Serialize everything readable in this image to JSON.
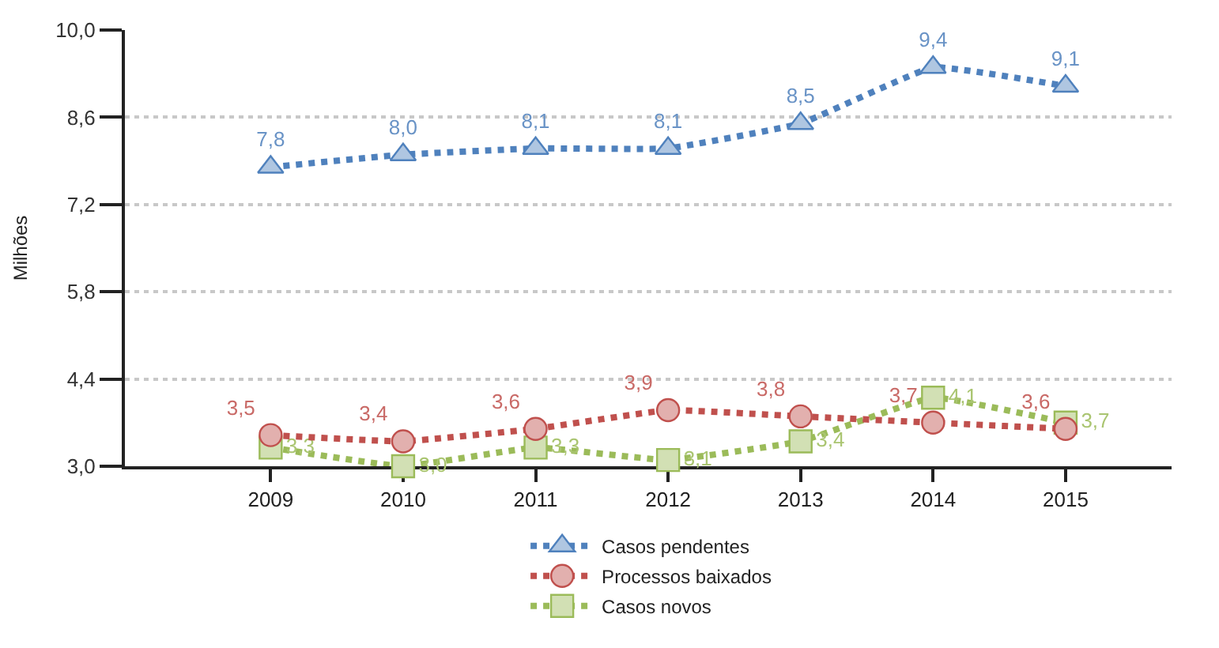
{
  "chart_data": {
    "type": "line",
    "ylabel": "Milhões",
    "categories": [
      "2009",
      "2010",
      "2011",
      "2012",
      "2013",
      "2014",
      "2015"
    ],
    "series": [
      {
        "name": "Casos pendentes",
        "color": "#4f81bd",
        "marker": "triangle",
        "values": [
          7.8,
          8.0,
          8.1,
          8.1,
          8.5,
          9.4,
          9.1
        ],
        "value_labels": [
          "7,8",
          "8,0",
          "8,1",
          "8,1",
          "8,5",
          "9,4",
          "9,1"
        ]
      },
      {
        "name": "Processos baixados",
        "color": "#c0504d",
        "marker": "circle",
        "values": [
          3.5,
          3.4,
          3.6,
          3.9,
          3.8,
          3.7,
          3.6
        ],
        "value_labels": [
          "3,5",
          "3,4",
          "3,6",
          "3,9",
          "3,8",
          "3,7",
          "3,6"
        ]
      },
      {
        "name": "Casos novos",
        "color": "#9bbb59",
        "marker": "square",
        "values": [
          3.3,
          3.0,
          3.3,
          3.1,
          3.4,
          4.1,
          3.7
        ],
        "value_labels": [
          "3,3",
          "3,0",
          "3,3",
          "3,1",
          "3,4",
          "4,1",
          "3,7"
        ]
      }
    ],
    "ylim": [
      3.0,
      10.0
    ],
    "yticks": [
      {
        "value": 3.0,
        "label": "3,0"
      },
      {
        "value": 4.4,
        "label": "4,4"
      },
      {
        "value": 5.8,
        "label": "5,8"
      },
      {
        "value": 7.2,
        "label": "7,2"
      },
      {
        "value": 8.6,
        "label": "8,6"
      },
      {
        "value": 10.0,
        "label": "10,0"
      }
    ],
    "grid": "y",
    "legend": "bottom",
    "line_style": "dotted"
  }
}
